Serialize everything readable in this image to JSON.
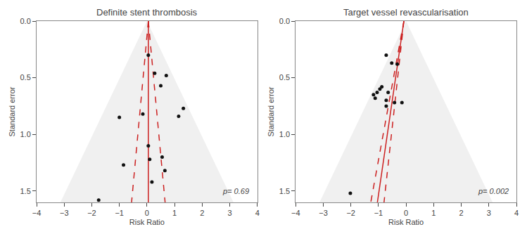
{
  "chart_data": [
    {
      "type": "scatter",
      "title": "Definite stent thrombosis",
      "xlabel": "Risk Ratio",
      "ylabel": "Standard error",
      "annotations": [
        "p= 0.69"
      ],
      "xlim": [
        -4.0,
        4.0
      ],
      "ylim": [
        1.6,
        0.0
      ],
      "xticks": [
        -4,
        -3,
        -2,
        -1,
        0,
        1,
        2,
        3,
        4
      ],
      "yticks": [
        {
          "value": 0,
          "label": "0.0"
        },
        0.5,
        {
          "value": 1,
          "label": "1.0"
        },
        1.5
      ],
      "grid": false,
      "series": [
        {
          "type": "area",
          "color": "#f0f0f0",
          "x": [
            3.136,
            0.0,
            -3.136
          ],
          "values": [
            1.6,
            0.0,
            1.6
          ]
        },
        {
          "type": "line",
          "color": "#cc2020",
          "x": [
            0.05,
            0.05
          ],
          "values": [
            0.0,
            1.6
          ]
        },
        {
          "type": "line",
          "color": "#cc2020",
          "line_style": "dashed",
          "x": [
            0.05,
            -0.558
          ],
          "values": [
            0.0,
            1.6
          ]
        },
        {
          "type": "line",
          "color": "#cc2020",
          "line_style": "dashed",
          "x": [
            0.05,
            0.658
          ],
          "values": [
            0.0,
            1.6
          ]
        },
        {
          "type": "scatter",
          "color": "#111111",
          "x": [
            -1.0,
            -0.15,
            0.05,
            0.05,
            0.28,
            0.5,
            0.7,
            -0.85,
            0.1,
            0.55,
            1.15,
            0.18,
            0.65,
            -1.75,
            1.32
          ],
          "values": [
            0.85,
            0.82,
            1.1,
            0.3,
            0.46,
            0.57,
            0.48,
            1.27,
            1.22,
            1.2,
            0.84,
            1.42,
            1.32,
            1.58,
            0.77
          ]
        }
      ]
    },
    {
      "type": "scatter",
      "title": "Target vessel revascularisation",
      "xlabel": "Risk Ratio",
      "ylabel": "Standard error",
      "annotations": [
        "p= 0.002"
      ],
      "xlim": [
        -4.0,
        4.0
      ],
      "ylim": [
        1.6,
        0.0
      ],
      "xticks": [
        -4,
        -3,
        -2,
        -1,
        0,
        1,
        2,
        3,
        4
      ],
      "yticks": [
        {
          "value": 0,
          "label": "0.0"
        },
        0.5,
        {
          "value": 1,
          "label": "1.0"
        },
        1.5
      ],
      "grid": false,
      "series": [
        {
          "type": "area",
          "color": "#f0f0f0",
          "x": [
            3.136,
            0.0,
            -3.136
          ],
          "values": [
            1.6,
            0.0,
            1.6
          ]
        },
        {
          "type": "line",
          "color": "#cc2020",
          "x": [
            -0.08,
            -1.04
          ],
          "values": [
            0.0,
            1.6
          ]
        },
        {
          "type": "line",
          "color": "#cc2020",
          "line_style": "dashed",
          "x": [
            -0.08,
            -1.28
          ],
          "values": [
            0.0,
            1.6
          ]
        },
        {
          "type": "line",
          "color": "#cc2020",
          "line_style": "dashed",
          "x": [
            -0.08,
            -0.8
          ],
          "values": [
            0.0,
            1.6
          ]
        },
        {
          "type": "scatter",
          "color": "#111111",
          "x": [
            -1.05,
            -1.12,
            -1.18,
            -0.95,
            -0.88,
            -0.72,
            -0.65,
            -0.52,
            -0.42,
            -0.72,
            -0.72,
            -0.32,
            -0.15,
            -2.02
          ],
          "values": [
            0.63,
            0.68,
            0.65,
            0.6,
            0.58,
            0.3,
            0.63,
            0.37,
            0.72,
            0.75,
            0.7,
            0.38,
            0.72,
            1.52
          ]
        }
      ]
    }
  ]
}
